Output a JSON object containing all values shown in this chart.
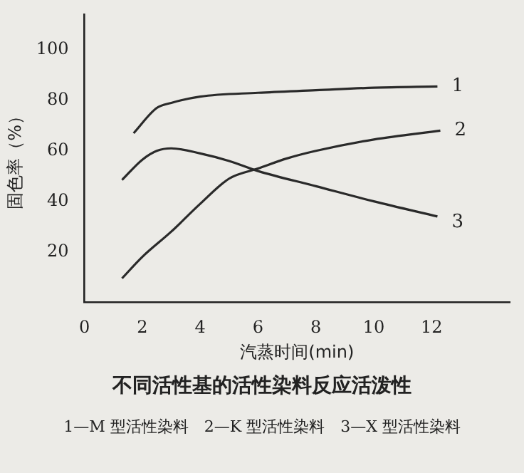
{
  "chart_data": {
    "type": "line",
    "title": "不同活性基的活性染料反应活泼性",
    "xlabel": "汽蒸时间(min)",
    "ylabel": "固色率（%）",
    "xlim": [
      0,
      14.7
    ],
    "ylim": [
      0,
      114
    ],
    "xticks": [
      0,
      2,
      4,
      6,
      8,
      10,
      12
    ],
    "yticks": [
      20,
      40,
      60,
      80,
      100
    ],
    "grid": false,
    "legend": false,
    "marker": "none",
    "line_style": "solid",
    "series": [
      {
        "name": "1",
        "color": "#2a2a2a",
        "x": [
          1.7,
          2.5,
          3,
          4,
          6,
          8,
          10,
          12.2
        ],
        "values": [
          67,
          77,
          79,
          81.5,
          83,
          84,
          85,
          85.5
        ]
      },
      {
        "name": "2",
        "color": "#2a2a2a",
        "x": [
          1.3,
          2,
          3,
          4,
          5,
          6,
          7,
          8,
          10,
          12.3
        ],
        "values": [
          9.5,
          18,
          28,
          39,
          49,
          53,
          57,
          60,
          64.5,
          68
        ]
      },
      {
        "name": "3",
        "color": "#2a2a2a",
        "x": [
          1.3,
          2,
          2.5,
          3,
          4,
          5,
          6,
          8,
          10,
          12.2
        ],
        "values": [
          48.5,
          56.5,
          60,
          61,
          59,
          56,
          52,
          46,
          40,
          34
        ]
      }
    ],
    "annotations": [
      "1—M 型活性染料　2—K 型活性染料　3—X 型活性染料"
    ]
  }
}
